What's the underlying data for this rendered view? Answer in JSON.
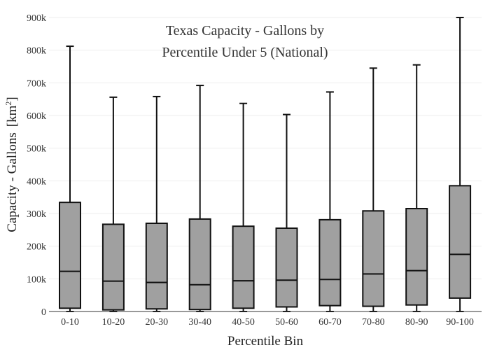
{
  "chart_data": {
    "type": "box",
    "title_lines": [
      "Texas Capacity - Gallons by",
      "Percentile Under 5 (National)"
    ],
    "xlabel": "Percentile Bin",
    "ylabel": "Capacity - Gallons",
    "ylabel_unit_base": "[km",
    "ylabel_unit_sup": "2",
    "ylabel_unit_end": "]",
    "ylim": [
      0,
      900000
    ],
    "yticks": [
      0,
      100000,
      200000,
      300000,
      400000,
      500000,
      600000,
      700000,
      800000,
      900000
    ],
    "ytick_labels": [
      "0",
      "100k",
      "200k",
      "300k",
      "400k",
      "500k",
      "600k",
      "700k",
      "800k",
      "900k"
    ],
    "grid": true,
    "box_color": "#a0a0a0",
    "categories": [
      "0-10",
      "10-20",
      "20-30",
      "30-40",
      "40-50",
      "50-60",
      "60-70",
      "70-80",
      "80-90",
      "90-100"
    ],
    "boxes": [
      {
        "min": 0,
        "q1": 10000,
        "median": 123000,
        "q3": 334000,
        "max": 812000
      },
      {
        "min": 0,
        "q1": 5000,
        "median": 93000,
        "q3": 267000,
        "max": 656000
      },
      {
        "min": 0,
        "q1": 8000,
        "median": 89000,
        "q3": 270000,
        "max": 658000
      },
      {
        "min": 0,
        "q1": 6000,
        "median": 82000,
        "q3": 283000,
        "max": 692000
      },
      {
        "min": 0,
        "q1": 10000,
        "median": 94000,
        "q3": 261000,
        "max": 637000
      },
      {
        "min": 0,
        "q1": 14000,
        "median": 96000,
        "q3": 255000,
        "max": 603000
      },
      {
        "min": 0,
        "q1": 18000,
        "median": 98000,
        "q3": 281000,
        "max": 672000
      },
      {
        "min": 0,
        "q1": 16000,
        "median": 115000,
        "q3": 308000,
        "max": 745000
      },
      {
        "min": 0,
        "q1": 20000,
        "median": 125000,
        "q3": 315000,
        "max": 755000
      },
      {
        "min": 0,
        "q1": 41000,
        "median": 175000,
        "q3": 385000,
        "max": 900000
      }
    ]
  }
}
